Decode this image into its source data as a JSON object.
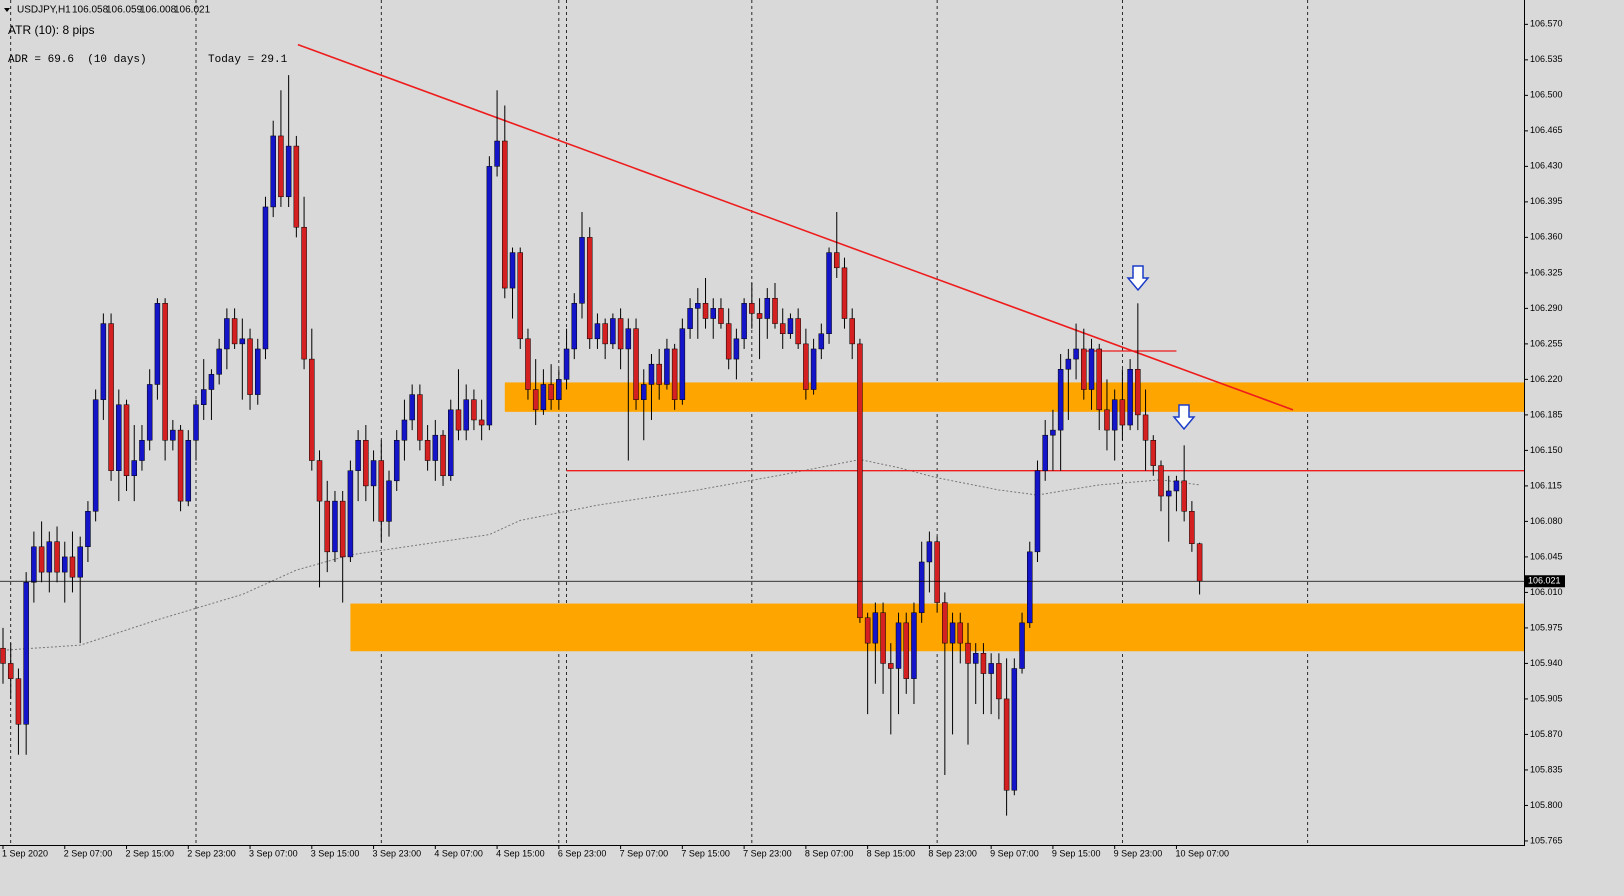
{
  "chart_data": {
    "type": "candlestick",
    "header": {
      "symbol": "USDJPY,H1"
    },
    "annotations": {
      "atr": "ATR (10): 8 pips",
      "adr": "ADR = 69.6  (10 days)",
      "today": "Today = 29.1"
    },
    "bull_color": "#1414c8",
    "bear_color": "#d42020",
    "ylim": [
      105.761,
      106.594
    ],
    "yticks": [
      {
        "value": 106.57,
        "label": "106.570"
      },
      106.535,
      {
        "value": 106.5,
        "label": "106.500"
      },
      106.465,
      {
        "value": 106.43,
        "label": "106.430"
      },
      106.395,
      {
        "value": 106.36,
        "label": "106.360"
      },
      106.325,
      {
        "value": 106.29,
        "label": "106.290"
      },
      106.255,
      {
        "value": 106.22,
        "label": "106.220"
      },
      106.185,
      {
        "value": 106.15,
        "label": "106.150"
      },
      106.115,
      {
        "value": 106.08,
        "label": "106.080"
      },
      106.045,
      {
        "value": 106.01,
        "label": "106.010"
      },
      105.975,
      {
        "value": 105.94,
        "label": "105.940"
      },
      105.905,
      {
        "value": 105.87,
        "label": "105.870"
      },
      105.835,
      {
        "value": 105.8,
        "label": "105.800"
      },
      105.765
    ],
    "xticks": [
      {
        "value": 0,
        "label": "1 Sep 2020"
      },
      {
        "value": 8,
        "label": "2 Sep 07:00"
      },
      {
        "value": 16,
        "label": "2 Sep 15:00"
      },
      {
        "value": 24,
        "label": "2 Sep 23:00"
      },
      {
        "value": 32,
        "label": "3 Sep 07:00"
      },
      {
        "value": 40,
        "label": "3 Sep 15:00"
      },
      {
        "value": 48,
        "label": "3 Sep 23:00"
      },
      {
        "value": 56,
        "label": "4 Sep 07:00"
      },
      {
        "value": 64,
        "label": "4 Sep 15:00"
      },
      {
        "value": 72,
        "label": "6 Sep 23:00"
      },
      {
        "value": 80,
        "label": "7 Sep 07:00"
      },
      {
        "value": 88,
        "label": "7 Sep 15:00"
      },
      {
        "value": 96,
        "label": "7 Sep 23:00"
      },
      {
        "value": 104,
        "label": "8 Sep 07:00"
      },
      {
        "value": 112,
        "label": "8 Sep 15:00"
      },
      {
        "value": 120,
        "label": "8 Sep 23:00"
      },
      {
        "value": 128,
        "label": "9 Sep 07:00"
      },
      {
        "value": 136,
        "label": "9 Sep 15:00"
      },
      {
        "value": 144,
        "label": "9 Sep 23:00"
      },
      {
        "value": 152,
        "label": "10 Sep 07:00"
      }
    ],
    "candles": [
      [
        105.955,
        105.975,
        105.92,
        105.94
      ],
      [
        105.94,
        105.96,
        105.905,
        105.925
      ],
      [
        105.925,
        105.935,
        105.85,
        105.88
      ],
      [
        105.88,
        106.03,
        105.85,
        106.02
      ],
      [
        106.02,
        106.07,
        106.0,
        106.055
      ],
      [
        106.055,
        106.08,
        106.02,
        106.03
      ],
      [
        106.03,
        106.07,
        106.01,
        106.06
      ],
      [
        106.06,
        106.075,
        106.02,
        106.03
      ],
      [
        106.03,
        106.06,
        106.0,
        106.045
      ],
      [
        106.045,
        106.07,
        106.01,
        106.025
      ],
      [
        106.025,
        106.065,
        105.96,
        106.055
      ],
      [
        106.055,
        106.1,
        106.04,
        106.09
      ],
      [
        106.09,
        106.21,
        106.08,
        106.2
      ],
      [
        106.2,
        106.285,
        106.18,
        106.275
      ],
      [
        106.275,
        106.285,
        106.12,
        106.13
      ],
      [
        106.13,
        106.21,
        106.1,
        106.195
      ],
      [
        106.195,
        106.2,
        106.11,
        106.125
      ],
      [
        106.125,
        106.175,
        106.1,
        106.14
      ],
      [
        106.14,
        106.175,
        106.13,
        106.16
      ],
      [
        106.16,
        106.23,
        106.15,
        106.215
      ],
      [
        106.215,
        106.3,
        106.2,
        106.295
      ],
      [
        106.295,
        106.3,
        106.14,
        106.16
      ],
      [
        106.16,
        106.18,
        106.15,
        106.17
      ],
      [
        106.17,
        106.175,
        106.09,
        106.1
      ],
      [
        106.1,
        106.17,
        106.095,
        106.16
      ],
      [
        106.16,
        106.2,
        106.14,
        106.195
      ],
      [
        106.195,
        106.24,
        106.18,
        106.21
      ],
      [
        106.21,
        106.23,
        106.18,
        106.225
      ],
      [
        106.225,
        106.26,
        106.215,
        106.25
      ],
      [
        106.25,
        106.29,
        106.23,
        106.28
      ],
      [
        106.28,
        106.29,
        106.25,
        106.255
      ],
      [
        106.255,
        106.28,
        106.2,
        106.26
      ],
      [
        106.26,
        106.27,
        106.19,
        106.205
      ],
      [
        106.205,
        106.26,
        106.195,
        106.25
      ],
      [
        106.25,
        106.4,
        106.24,
        106.39
      ],
      [
        106.39,
        106.475,
        106.38,
        106.46
      ],
      [
        106.46,
        106.505,
        106.39,
        106.4
      ],
      [
        106.4,
        106.52,
        106.39,
        106.45
      ],
      [
        106.45,
        106.46,
        106.36,
        106.37
      ],
      [
        106.37,
        106.4,
        106.23,
        106.24
      ],
      [
        106.24,
        106.27,
        106.13,
        106.14
      ],
      [
        106.14,
        106.15,
        106.015,
        106.1
      ],
      [
        106.1,
        106.12,
        106.03,
        106.05
      ],
      [
        106.05,
        106.11,
        106.04,
        106.1
      ],
      [
        106.1,
        106.11,
        106.0,
        106.045
      ],
      [
        106.045,
        106.14,
        106.04,
        106.13
      ],
      [
        106.13,
        106.17,
        106.1,
        106.16
      ],
      [
        106.16,
        106.175,
        106.1,
        106.115
      ],
      [
        106.115,
        106.15,
        106.08,
        106.14
      ],
      [
        106.14,
        106.16,
        106.06,
        106.08
      ],
      [
        106.08,
        106.13,
        106.065,
        106.12
      ],
      [
        106.12,
        106.17,
        106.11,
        106.16
      ],
      [
        106.16,
        106.2,
        106.14,
        106.18
      ],
      [
        106.18,
        106.215,
        106.17,
        106.205
      ],
      [
        106.205,
        106.215,
        106.15,
        106.16
      ],
      [
        106.16,
        106.175,
        106.13,
        106.14
      ],
      [
        106.14,
        106.18,
        106.12,
        106.165
      ],
      [
        106.165,
        106.17,
        106.115,
        106.125
      ],
      [
        106.125,
        106.2,
        106.12,
        106.19
      ],
      [
        106.19,
        106.23,
        106.16,
        106.17
      ],
      [
        106.17,
        106.215,
        106.16,
        106.2
      ],
      [
        106.2,
        106.21,
        106.17,
        106.18
      ],
      [
        106.18,
        106.2,
        106.16,
        106.175
      ],
      [
        106.175,
        106.44,
        106.17,
        106.43
      ],
      [
        106.43,
        106.505,
        106.42,
        106.455
      ],
      [
        106.455,
        106.49,
        106.3,
        106.31
      ],
      [
        106.31,
        106.35,
        106.28,
        106.345
      ],
      [
        106.345,
        106.35,
        106.25,
        106.26
      ],
      [
        106.26,
        106.27,
        106.2,
        106.21
      ],
      [
        106.21,
        106.24,
        106.175,
        106.19
      ],
      [
        106.19,
        106.23,
        106.185,
        106.215
      ],
      [
        106.215,
        106.235,
        106.19,
        106.2
      ],
      [
        106.2,
        106.23,
        106.19,
        106.22
      ],
      [
        106.22,
        106.27,
        106.21,
        106.25
      ],
      [
        106.25,
        106.305,
        106.24,
        106.295
      ],
      [
        106.295,
        106.385,
        106.28,
        106.36
      ],
      [
        106.36,
        106.37,
        106.25,
        106.26
      ],
      [
        106.26,
        106.285,
        106.25,
        106.275
      ],
      [
        106.275,
        106.28,
        106.24,
        106.255
      ],
      [
        106.255,
        106.285,
        106.25,
        106.28
      ],
      [
        106.28,
        106.29,
        106.23,
        106.25
      ],
      [
        106.25,
        106.28,
        106.14,
        106.27
      ],
      [
        106.27,
        106.28,
        106.19,
        106.2
      ],
      [
        106.2,
        106.23,
        106.16,
        106.215
      ],
      [
        106.215,
        106.245,
        106.18,
        106.235
      ],
      [
        106.235,
        106.25,
        106.2,
        106.215
      ],
      [
        106.215,
        106.26,
        106.21,
        106.25
      ],
      [
        106.25,
        106.255,
        106.19,
        106.2
      ],
      [
        106.2,
        106.28,
        106.195,
        106.27
      ],
      [
        106.27,
        106.3,
        106.26,
        106.29
      ],
      [
        106.29,
        106.31,
        106.26,
        106.295
      ],
      [
        106.295,
        106.32,
        106.27,
        106.28
      ],
      [
        106.28,
        106.3,
        106.26,
        106.29
      ],
      [
        106.29,
        106.3,
        106.27,
        106.275
      ],
      [
        106.275,
        106.29,
        106.23,
        106.24
      ],
      [
        106.24,
        106.27,
        106.22,
        106.26
      ],
      [
        106.26,
        106.3,
        106.25,
        106.295
      ],
      [
        106.295,
        106.315,
        106.27,
        106.285
      ],
      [
        106.285,
        106.3,
        106.24,
        106.28
      ],
      [
        106.28,
        106.31,
        106.26,
        106.3
      ],
      [
        106.3,
        106.315,
        106.27,
        106.275
      ],
      [
        106.275,
        106.29,
        106.25,
        106.265
      ],
      [
        106.265,
        106.285,
        106.26,
        106.28
      ],
      [
        106.28,
        106.29,
        106.25,
        106.255
      ],
      [
        106.255,
        106.27,
        106.2,
        106.21
      ],
      [
        106.21,
        106.26,
        106.205,
        106.25
      ],
      [
        106.25,
        106.275,
        106.24,
        106.265
      ],
      [
        106.265,
        106.35,
        106.255,
        106.345
      ],
      [
        106.345,
        106.385,
        106.32,
        106.33
      ],
      [
        106.33,
        106.34,
        106.27,
        106.28
      ],
      [
        106.28,
        106.29,
        106.24,
        106.255
      ],
      [
        106.255,
        106.26,
        105.98,
        105.985
      ],
      [
        105.985,
        105.99,
        105.89,
        105.96
      ],
      [
        105.96,
        106.0,
        105.92,
        105.99
      ],
      [
        105.99,
        106.0,
        105.91,
        105.94
      ],
      [
        105.94,
        105.96,
        105.87,
        105.935
      ],
      [
        105.935,
        105.99,
        105.89,
        105.98
      ],
      [
        105.98,
        105.99,
        105.91,
        105.925
      ],
      [
        105.925,
        106.0,
        105.9,
        105.99
      ],
      [
        105.99,
        106.06,
        105.98,
        106.04
      ],
      [
        106.04,
        106.07,
        106.01,
        106.06
      ],
      [
        106.06,
        106.065,
        105.99,
        106.0
      ],
      [
        106.0,
        106.01,
        105.83,
        105.96
      ],
      [
        105.96,
        105.99,
        105.87,
        105.98
      ],
      [
        105.98,
        105.99,
        105.94,
        105.96
      ],
      [
        105.96,
        105.98,
        105.86,
        105.94
      ],
      [
        105.94,
        105.96,
        105.9,
        105.95
      ],
      [
        105.95,
        105.96,
        105.89,
        105.93
      ],
      [
        105.93,
        105.95,
        105.89,
        105.94
      ],
      [
        105.94,
        105.95,
        105.885,
        105.905
      ],
      [
        105.905,
        105.945,
        105.79,
        105.815
      ],
      [
        105.815,
        105.945,
        105.81,
        105.935
      ],
      [
        105.935,
        105.99,
        105.93,
        105.98
      ],
      [
        105.98,
        106.06,
        105.975,
        106.05
      ],
      [
        106.05,
        106.14,
        106.04,
        106.13
      ],
      [
        106.13,
        106.18,
        106.12,
        106.165
      ],
      [
        106.165,
        106.19,
        106.13,
        106.17
      ],
      [
        106.17,
        106.245,
        106.13,
        106.23
      ],
      [
        106.23,
        106.25,
        106.18,
        106.24
      ],
      [
        106.24,
        106.275,
        106.22,
        106.25
      ],
      [
        106.25,
        106.27,
        106.2,
        106.21
      ],
      [
        106.21,
        106.26,
        106.19,
        106.25
      ],
      [
        106.25,
        106.255,
        106.17,
        106.19
      ],
      [
        106.19,
        106.22,
        106.15,
        106.17
      ],
      [
        106.17,
        106.21,
        106.14,
        106.2
      ],
      [
        106.2,
        106.23,
        106.16,
        106.175
      ],
      [
        106.175,
        106.24,
        106.17,
        106.23
      ],
      [
        106.23,
        106.295,
        106.17,
        106.185
      ],
      [
        106.185,
        106.21,
        106.13,
        106.16
      ],
      [
        106.16,
        106.165,
        106.125,
        106.135
      ],
      [
        106.135,
        106.14,
        106.09,
        106.105
      ],
      [
        106.105,
        106.125,
        106.06,
        106.11
      ],
      [
        106.11,
        106.125,
        106.09,
        106.12
      ],
      [
        106.12,
        106.155,
        106.08,
        106.09
      ],
      [
        106.09,
        106.1,
        106.05,
        106.058
      ],
      [
        106.058,
        106.059,
        106.008,
        106.021
      ]
    ],
    "ma": {
      "x": [
        0,
        10,
        20,
        31,
        38,
        45,
        54,
        63,
        67,
        77,
        90,
        101,
        111,
        116,
        121,
        129,
        134,
        142,
        150,
        155
      ],
      "values": [
        105.953,
        105.958,
        105.983,
        106.008,
        106.032,
        106.047,
        106.057,
        106.067,
        106.081,
        106.096,
        106.111,
        106.126,
        106.141,
        106.133,
        106.123,
        106.111,
        106.106,
        106.116,
        106.121,
        106.116
      ]
    },
    "zones": [
      {
        "from": 65,
        "top": 106.217,
        "bottom": 106.188
      },
      {
        "from": 45,
        "top": 105.999,
        "bottom": 105.952
      }
    ],
    "trendline": {
      "x": [
        38.2,
        167.1
      ],
      "values": [
        106.55,
        106.19
      ]
    },
    "hlines": [
      {
        "from": 73,
        "value": 106.13
      },
      {
        "from": 140,
        "to": 152,
        "value": 106.248
      }
    ]
  }
}
